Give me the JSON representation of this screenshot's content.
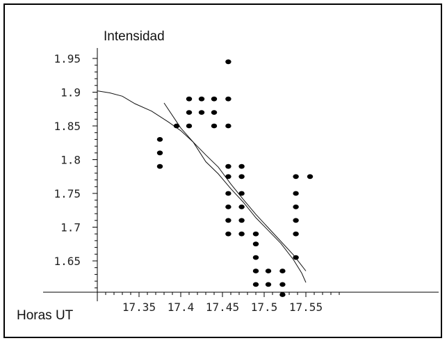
{
  "chart_data": {
    "type": "scatter",
    "title": "",
    "xlabel": "Horas UT",
    "ylabel": "Intensidad",
    "xlim": [
      17.3,
      17.56
    ],
    "ylim": [
      1.61,
      1.96
    ],
    "x_ticks": [
      17.35,
      17.4,
      17.45,
      17.5,
      17.55
    ],
    "x_tick_labels": [
      "17.35",
      "17.4",
      "17.45",
      "17.5",
      "17.55"
    ],
    "y_ticks": [
      1.65,
      1.7,
      1.75,
      1.8,
      1.85,
      1.9,
      1.95
    ],
    "y_tick_labels": [
      "1.65",
      "1.7",
      "1.75",
      "1.8",
      "1.85",
      "1.9",
      "1.95"
    ],
    "grid": false,
    "legend": "none",
    "colors": {
      "points": "#000000",
      "lines": "#111111",
      "axis": "#000000"
    },
    "series": [
      {
        "type": "scatter",
        "points": [
          [
            17.375,
            1.83
          ],
          [
            17.375,
            1.81
          ],
          [
            17.375,
            1.79
          ],
          [
            17.395,
            1.85
          ],
          [
            17.41,
            1.89
          ],
          [
            17.41,
            1.87
          ],
          [
            17.41,
            1.85
          ],
          [
            17.425,
            1.89
          ],
          [
            17.425,
            1.87
          ],
          [
            17.44,
            1.89
          ],
          [
            17.44,
            1.87
          ],
          [
            17.44,
            1.85
          ],
          [
            17.457,
            1.945
          ],
          [
            17.457,
            1.89
          ],
          [
            17.457,
            1.85
          ],
          [
            17.457,
            1.79
          ],
          [
            17.457,
            1.775
          ],
          [
            17.457,
            1.75
          ],
          [
            17.457,
            1.73
          ],
          [
            17.457,
            1.71
          ],
          [
            17.457,
            1.69
          ],
          [
            17.473,
            1.79
          ],
          [
            17.473,
            1.775
          ],
          [
            17.473,
            1.75
          ],
          [
            17.473,
            1.73
          ],
          [
            17.473,
            1.71
          ],
          [
            17.473,
            1.69
          ],
          [
            17.49,
            1.69
          ],
          [
            17.49,
            1.675
          ],
          [
            17.49,
            1.655
          ],
          [
            17.49,
            1.635
          ],
          [
            17.49,
            1.615
          ],
          [
            17.505,
            1.635
          ],
          [
            17.505,
            1.615
          ],
          [
            17.522,
            1.635
          ],
          [
            17.522,
            1.615
          ],
          [
            17.522,
            1.6
          ],
          [
            17.538,
            1.775
          ],
          [
            17.538,
            1.75
          ],
          [
            17.538,
            1.73
          ],
          [
            17.538,
            1.71
          ],
          [
            17.538,
            1.69
          ],
          [
            17.538,
            1.655
          ],
          [
            17.555,
            1.775
          ]
        ]
      },
      {
        "type": "line",
        "points": [
          [
            17.3,
            1.902
          ],
          [
            17.315,
            1.899
          ],
          [
            17.33,
            1.894
          ],
          [
            17.345,
            1.883
          ],
          [
            17.365,
            1.872
          ],
          [
            17.385,
            1.856
          ],
          [
            17.4,
            1.843
          ],
          [
            17.415,
            1.826
          ],
          [
            17.43,
            1.807
          ],
          [
            17.445,
            1.789
          ],
          [
            17.46,
            1.764
          ],
          [
            17.475,
            1.741
          ],
          [
            17.49,
            1.719
          ],
          [
            17.505,
            1.699
          ],
          [
            17.52,
            1.679
          ],
          [
            17.535,
            1.659
          ],
          [
            17.55,
            1.635
          ]
        ]
      },
      {
        "type": "line",
        "points": [
          [
            17.38,
            1.884
          ],
          [
            17.4,
            1.847
          ],
          [
            17.415,
            1.826
          ],
          [
            17.43,
            1.797
          ],
          [
            17.445,
            1.779
          ],
          [
            17.46,
            1.757
          ],
          [
            17.475,
            1.737
          ],
          [
            17.49,
            1.714
          ],
          [
            17.505,
            1.695
          ],
          [
            17.52,
            1.676
          ],
          [
            17.535,
            1.652
          ],
          [
            17.545,
            1.632
          ],
          [
            17.55,
            1.618
          ]
        ]
      }
    ]
  }
}
